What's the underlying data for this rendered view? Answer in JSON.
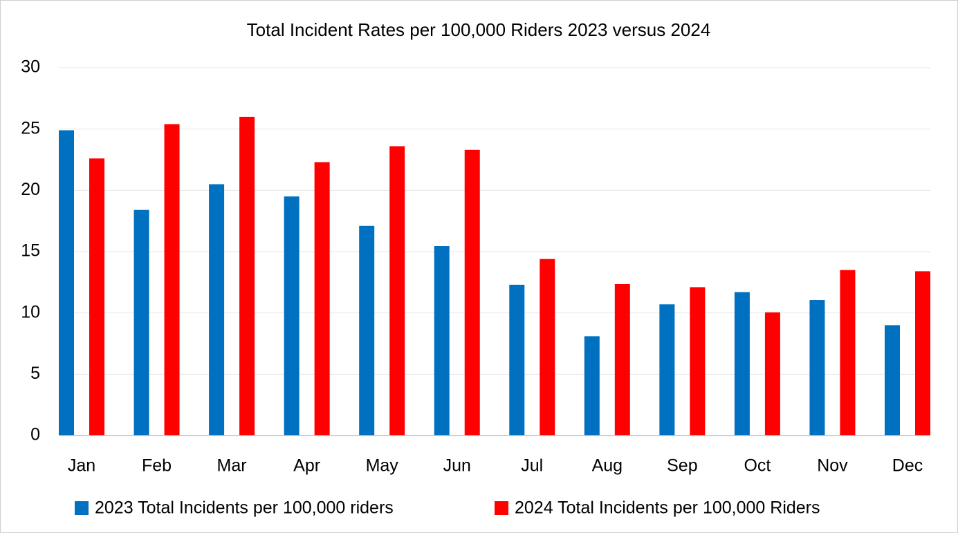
{
  "chart_data": {
    "type": "bar",
    "title": "Total Incident Rates per 100,000 Riders 2023 versus 2024",
    "categories": [
      "Jan",
      "Feb",
      "Mar",
      "Apr",
      "May",
      "Jun",
      "Jul",
      "Aug",
      "Sep",
      "Oct",
      "Nov",
      "Dec"
    ],
    "series": [
      {
        "name": "2023 Total Incidents per 100,000 riders",
        "color": "#0070c0",
        "values": [
          24.9,
          18.4,
          20.5,
          19.5,
          17.1,
          15.45,
          12.3,
          8.1,
          10.7,
          11.7,
          11.05,
          9.0
        ]
      },
      {
        "name": "2024 Total Incidents per 100,000 Riders",
        "color": "#ff0000",
        "values": [
          22.6,
          25.4,
          26.0,
          22.3,
          23.6,
          23.3,
          14.4,
          12.35,
          12.1,
          10.05,
          13.5,
          13.4
        ]
      }
    ],
    "ylim": [
      0,
      30
    ],
    "yticks": [
      0,
      5,
      10,
      15,
      20,
      25,
      30
    ],
    "grid": true,
    "legend": "bottom"
  }
}
